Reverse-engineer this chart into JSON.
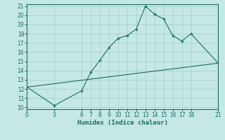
{
  "xlabel": "Humidex (Indice chaleur)",
  "ylabel": "",
  "bg_color": "#c5e8e5",
  "grid_color": "#aad4d0",
  "line_color": "#1a6b65",
  "xlim": [
    0,
    21
  ],
  "ylim": [
    9.8,
    21.2
  ],
  "xticks": [
    0,
    3,
    6,
    7,
    8,
    9,
    10,
    11,
    12,
    13,
    14,
    15,
    16,
    17,
    18,
    21
  ],
  "yticks": [
    10,
    11,
    12,
    13,
    14,
    15,
    16,
    17,
    18,
    19,
    20,
    21
  ],
  "curve1_x": [
    0,
    3,
    6,
    7,
    8,
    9,
    10,
    11,
    12,
    13,
    14,
    15,
    16,
    17,
    18,
    21
  ],
  "curve1_y": [
    12.2,
    10.2,
    11.8,
    13.8,
    15.1,
    16.5,
    17.5,
    17.8,
    18.5,
    21.0,
    20.1,
    19.6,
    17.8,
    17.2,
    18.0,
    14.8
  ],
  "curve2_x": [
    0,
    21
  ],
  "curve2_y": [
    12.2,
    14.8
  ],
  "tick_fontsize": 5.5,
  "xlabel_fontsize": 6.5
}
